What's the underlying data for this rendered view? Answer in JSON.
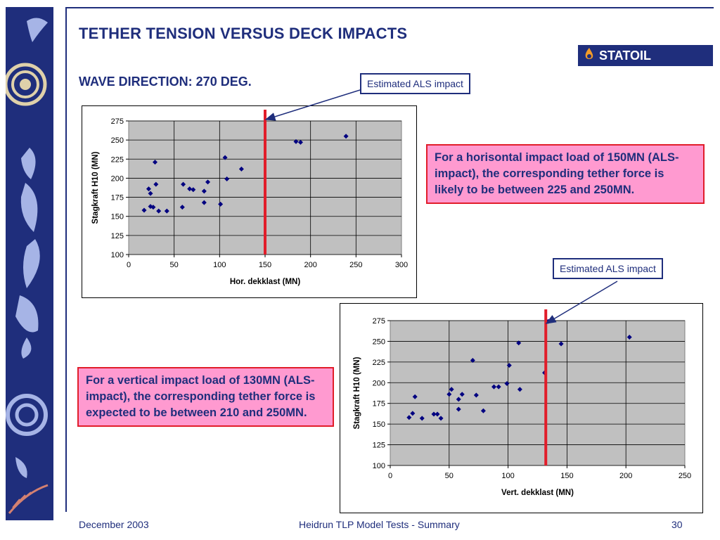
{
  "slide": {
    "title": "TETHER TENSION VERSUS DECK IMPACTS",
    "subtitle": "WAVE DIRECTION: 270 DEG.",
    "logo_text": "STATOIL",
    "callout1": "Estimated ALS impact",
    "callout2": "Estimated ALS impact",
    "note1": "For a horisontal impact load of 150MN (ALS-impact), the corresponding tether force is likely to be between 225 and  250MN.",
    "note2": "For a vertical impact load of 130MN (ALS-impact), the corresponding tether force is expected to be between 210 and 250MN.",
    "footer_left": "December 2003",
    "footer_center": "Heidrun TLP Model Tests - Summary",
    "footer_right": "30"
  },
  "colors": {
    "brand": "#1f2e7c",
    "marker": "#000080",
    "als_line": "#e11d2a",
    "plot_bg": "#c0c0c0",
    "note_bg": "#ff9ad0"
  },
  "chart_data": [
    {
      "type": "scatter",
      "xlabel": "Hor. dekklast   (MN)",
      "ylabel": "Stagkraft  H10   (MN)",
      "xlim": [
        0,
        300
      ],
      "ylim": [
        100,
        275
      ],
      "xticks": [
        0,
        50,
        100,
        150,
        200,
        250,
        300
      ],
      "yticks": [
        100,
        125,
        150,
        175,
        200,
        225,
        250,
        275
      ],
      "grid": true,
      "als_line_x": 150,
      "points": [
        [
          17,
          158
        ],
        [
          22,
          186
        ],
        [
          24,
          180
        ],
        [
          24,
          163
        ],
        [
          27,
          162
        ],
        [
          29,
          221
        ],
        [
          30,
          192
        ],
        [
          33,
          157
        ],
        [
          42,
          157
        ],
        [
          59,
          162
        ],
        [
          60,
          192
        ],
        [
          67,
          186
        ],
        [
          71,
          185
        ],
        [
          83,
          168
        ],
        [
          83,
          183
        ],
        [
          87,
          195
        ],
        [
          101,
          166
        ],
        [
          106,
          227
        ],
        [
          108,
          199
        ],
        [
          124,
          212
        ],
        [
          184,
          248
        ],
        [
          189,
          247
        ],
        [
          239,
          255
        ]
      ]
    },
    {
      "type": "scatter",
      "xlabel": "Vert. dekklast  (MN)",
      "ylabel": "Stagkraft H10 (MN)",
      "xlim": [
        0,
        250
      ],
      "ylim": [
        100,
        275
      ],
      "xticks": [
        0,
        50,
        100,
        150,
        200,
        250
      ],
      "yticks": [
        100,
        125,
        150,
        175,
        200,
        225,
        250,
        275
      ],
      "grid": true,
      "als_line_x": 132,
      "points": [
        [
          16,
          158
        ],
        [
          19,
          163
        ],
        [
          21,
          183
        ],
        [
          27,
          157
        ],
        [
          37,
          162
        ],
        [
          40,
          162
        ],
        [
          43,
          157
        ],
        [
          50,
          186
        ],
        [
          52,
          192
        ],
        [
          58,
          180
        ],
        [
          58,
          168
        ],
        [
          61,
          186
        ],
        [
          70,
          227
        ],
        [
          73,
          185
        ],
        [
          79,
          166
        ],
        [
          88,
          195
        ],
        [
          92,
          195
        ],
        [
          99,
          199
        ],
        [
          101,
          221
        ],
        [
          109,
          248
        ],
        [
          110,
          192
        ],
        [
          131,
          212
        ],
        [
          134,
          274
        ],
        [
          145,
          247
        ],
        [
          203,
          255
        ]
      ]
    }
  ]
}
